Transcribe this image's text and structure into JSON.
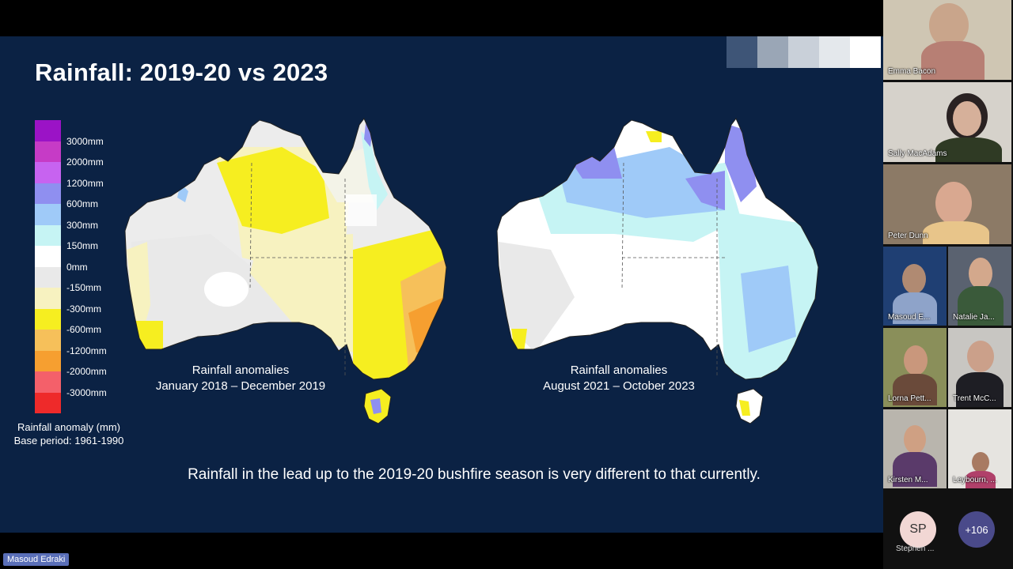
{
  "slide": {
    "title": "Rainfall: 2019-20 vs 2023",
    "legend": {
      "labels": [
        "3000mm",
        "2000mm",
        "1200mm",
        "600mm",
        "300mm",
        "150mm",
        "0mm",
        "-150mm",
        "-300mm",
        "-600mm",
        "-1200mm",
        "-2000mm",
        "-3000mm"
      ],
      "colors": [
        "#9b13c6",
        "#c63bc6",
        "#c763f0",
        "#8f8ff0",
        "#9fcaf8",
        "#c6f4f4",
        "#ffffff",
        "#e9e9e9",
        "#f7f2c0",
        "#f6ee20",
        "#f6c05a",
        "#f69f30",
        "#f4606a",
        "#ee2a2a"
      ],
      "caption_line1": "Rainfall anomaly (mm)",
      "caption_line2": "Base period: 1961-1990"
    },
    "map_left": {
      "caption_line1": "Rainfall anomalies",
      "caption_line2": "January 2018 – December 2019"
    },
    "map_right": {
      "caption_line1": "Rainfall anomalies",
      "caption_line2": "August 2021 – October 2023"
    },
    "bottom_text": "Rainfall in the lead up to the 2019-20 bushfire season is very different to that currently."
  },
  "presenter_name": "Masoud Edraki",
  "participants": [
    {
      "name": "Emma Bacon"
    },
    {
      "name": "Sally MacAdams"
    },
    {
      "name": "Peter Dunn"
    },
    {
      "name": "Masoud E..."
    },
    {
      "name": "Natalie Ja..."
    },
    {
      "name": "Lorna Pett..."
    },
    {
      "name": "Trent McC..."
    },
    {
      "name": "Kirsten M..."
    },
    {
      "name": "Leybourn, ..."
    }
  ],
  "avatar": {
    "initials": "SP",
    "name": "Stephen ..."
  },
  "more_count": "+106"
}
